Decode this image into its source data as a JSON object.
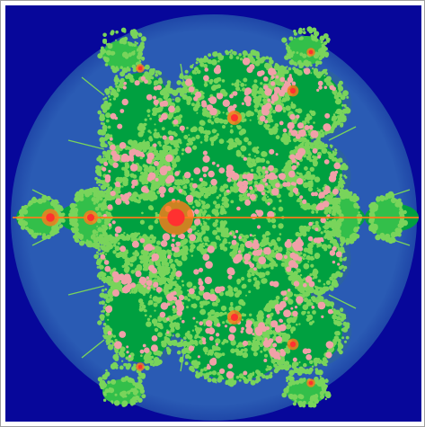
{
  "image": {
    "colors": {
      "background": "#07079a",
      "disk": "#2a5bb4",
      "shadow": "#2f6a8a",
      "body": "#00a040",
      "body_light": "#33bf4a",
      "frond": "#79d45b",
      "bloom": "#f0a0a8",
      "hot": "#ff7a1a",
      "core": "#ff3030"
    }
  }
}
